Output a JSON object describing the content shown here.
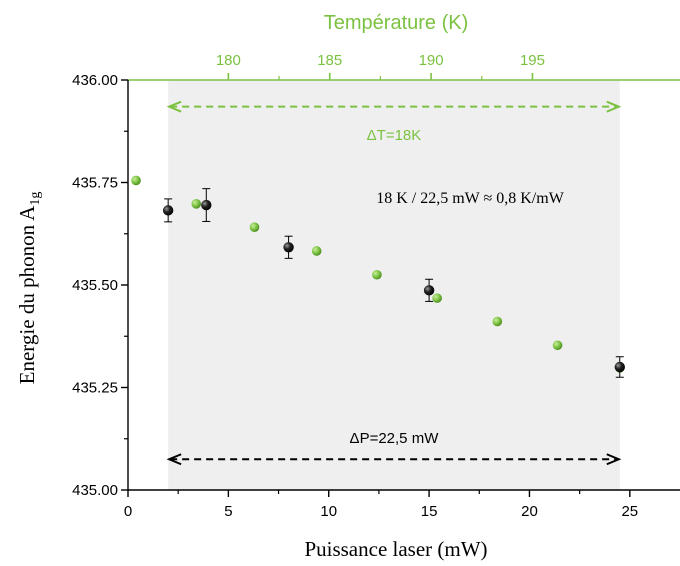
{
  "chart_data": {
    "type": "scatter",
    "xlabel": "Puissance laser (mW)",
    "ylabel": "Energie du phonon A",
    "ylabel_subscript": "1g",
    "top_axis_label": "Température (K)",
    "xlim": [
      0,
      27.5
    ],
    "ylim": [
      435.0,
      436.0
    ],
    "x_ticks": [
      "0",
      "5",
      "10",
      "15",
      "20",
      "25"
    ],
    "y_ticks": [
      "435.00",
      "435.25",
      "435.50",
      "435.75",
      "436.00"
    ],
    "x_tick_values": [
      0,
      5,
      10,
      15,
      20,
      25
    ],
    "y_tick_values": [
      435.0,
      435.25,
      435.5,
      435.75,
      436.0
    ],
    "top_ticks": [
      "180",
      "185",
      "190",
      "195"
    ],
    "top_tick_positions": [
      5,
      10.05,
      15.1,
      20.15
    ],
    "shaded_region": {
      "x": [
        2,
        24.5
      ],
      "color": "#efefef"
    },
    "series": [
      {
        "marker_color": "#7cc242",
        "x": [
          0.4,
          3.4,
          6.3,
          9.4,
          12.4,
          15.4,
          18.4,
          21.4,
          24.5
        ],
        "y": [
          435.755,
          435.698,
          435.641,
          435.583,
          435.525,
          435.468,
          435.411,
          435.353,
          435.298
        ]
      },
      {
        "marker_color": "#111111",
        "x": [
          2.0,
          3.9,
          8.0,
          15.0,
          24.5
        ],
        "y": [
          435.682,
          435.695,
          435.592,
          435.487,
          435.3
        ],
        "err": [
          0.028,
          0.04,
          0.027,
          0.027,
          0.025
        ]
      }
    ],
    "annotations": {
      "delta_t": {
        "text": "ΔT=18K",
        "color": "#7cc242",
        "x": [
          2,
          24.5
        ],
        "y": 435.935
      },
      "delta_p": {
        "text": "ΔP=22,5 mW",
        "color": "#000000",
        "x": [
          2,
          24.5
        ],
        "y": 435.075
      },
      "ratio": {
        "text": "18 K / 22,5 mW ≈ 0,8 K/mW",
        "color": "#000000"
      }
    },
    "colors": {
      "green": "#7cc242",
      "black": "#000000",
      "shade": "#efefef"
    }
  }
}
